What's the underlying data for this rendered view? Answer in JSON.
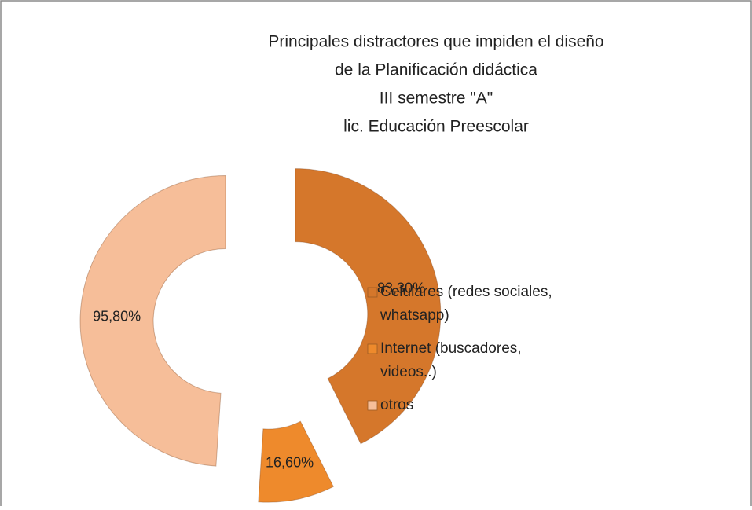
{
  "chart_data": {
    "type": "donut",
    "title": [
      "Principales distractores que impiden el diseño",
      "de la Planificación didáctica",
      "III semestre \"A\"",
      "lic. Educación Preescolar"
    ],
    "categories": [
      "Celulares (redes sociales, whatsapp)",
      "Internet (buscadores, videos..)",
      "otros"
    ],
    "values": [
      83.3,
      16.6,
      95.8
    ],
    "value_labels": [
      "83,30%",
      "16,60%",
      "95,80%"
    ],
    "colors": [
      "#D5772B",
      "#EE8A2C",
      "#F6BE99"
    ],
    "legend": "right"
  }
}
